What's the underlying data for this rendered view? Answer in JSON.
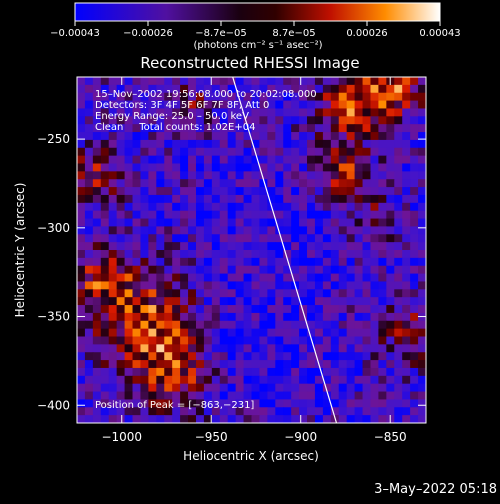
{
  "chart_data": {
    "type": "heatmap",
    "title": "Reconstructed RHESSI Image",
    "xlabel": "Heliocentric X (arcsec)",
    "ylabel": "Heliocentric Y (arcsec)",
    "xlim": [
      -1025,
      -830
    ],
    "ylim": [
      -410,
      -215
    ],
    "x_ticks": [
      {
        "value": -1000,
        "label": "−1000"
      },
      {
        "value": -950,
        "label": "−950"
      },
      {
        "value": -900,
        "label": "−900"
      },
      {
        "value": -850,
        "label": "−850"
      }
    ],
    "y_ticks": [
      {
        "value": -250,
        "label": "−250"
      },
      {
        "value": -300,
        "label": "−300"
      },
      {
        "value": -350,
        "label": "−350"
      },
      {
        "value": -400,
        "label": "−400"
      }
    ],
    "colorbar": {
      "range": [
        -0.00043,
        0.00043
      ],
      "tick_labels": [
        "−0.00043",
        "−0.00026",
        "−8.7e−05",
        "8.7e−05",
        "0.00026",
        "0.00043"
      ],
      "unit_label": "(photons cm⁻² s⁻¹ asec⁻²)"
    },
    "annotations": [
      "15–Nov–2002 19:56:08.000 to 20:02:08.000",
      "Detectors: 3F 4F 5F 6F 7F 8F, Att 0",
      "Energy Range: 25.0 – 50.0 keV",
      "Clean     Total counts: 1.02E+04",
      "Position of Peak = [−863,−231]"
    ],
    "peak": {
      "x": -863,
      "y": -231
    },
    "limb_line": [
      [
        -938,
        -215
      ],
      [
        -880,
        -410
      ]
    ],
    "grid": false
  },
  "footer": {
    "timestamp": "3–May–2022 05:18"
  }
}
